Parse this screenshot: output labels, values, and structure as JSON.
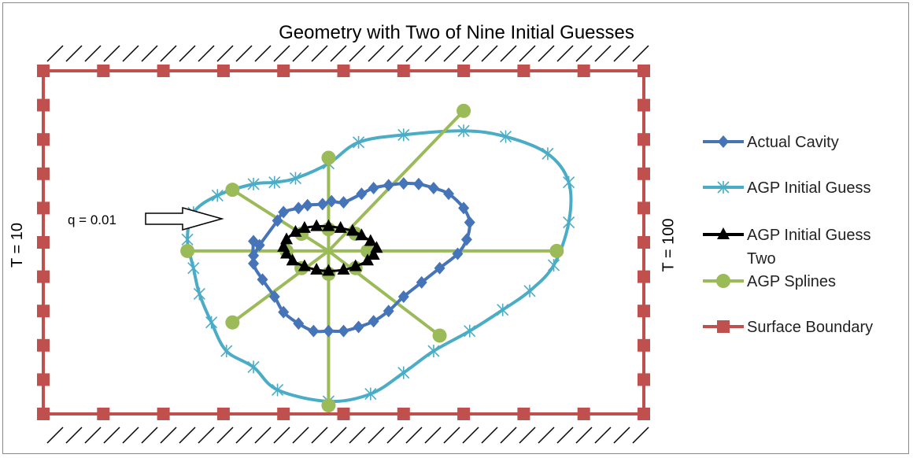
{
  "chart_data": {
    "type": "scatter",
    "title": "Geometry with Two of Nine Initial Guesses",
    "xlim": [
      0,
      10
    ],
    "ylim": [
      0,
      6
    ],
    "grid": false,
    "legend_position": "right",
    "left_boundary_label": "T = 10",
    "right_boundary_label": "T = 100",
    "flux_label": "q = 0.01",
    "series": [
      {
        "name": "Actual Cavity",
        "color": "#4674b8",
        "marker": "diamond",
        "points": [
          [
            3.5,
            3.02
          ],
          [
            3.5,
            2.77
          ],
          [
            3.6,
            2.95
          ],
          [
            3.9,
            3.38
          ],
          [
            4.0,
            3.53
          ],
          [
            4.25,
            3.6
          ],
          [
            4.4,
            3.65
          ],
          [
            4.65,
            3.67
          ],
          [
            4.8,
            3.72
          ],
          [
            5.0,
            3.7
          ],
          [
            5.3,
            3.85
          ],
          [
            5.5,
            3.95
          ],
          [
            5.75,
            4.0
          ],
          [
            6.0,
            4.03
          ],
          [
            6.25,
            4.02
          ],
          [
            6.5,
            3.95
          ],
          [
            6.75,
            3.85
          ],
          [
            7.0,
            3.6
          ],
          [
            7.1,
            3.35
          ],
          [
            7.05,
            3.05
          ],
          [
            6.9,
            2.8
          ],
          [
            6.6,
            2.55
          ],
          [
            6.3,
            2.3
          ],
          [
            6.0,
            2.05
          ],
          [
            5.75,
            1.8
          ],
          [
            5.5,
            1.62
          ],
          [
            5.25,
            1.52
          ],
          [
            5.0,
            1.45
          ],
          [
            4.75,
            1.45
          ],
          [
            4.5,
            1.45
          ],
          [
            4.25,
            1.58
          ],
          [
            4.0,
            1.78
          ],
          [
            3.85,
            2.05
          ],
          [
            3.65,
            2.35
          ],
          [
            3.5,
            2.63
          ]
        ]
      },
      {
        "name": "AGP Initial Guess",
        "color": "#4bacc6",
        "marker": "asterisk",
        "points": [
          [
            2.4,
            3.05
          ],
          [
            2.5,
            3.52
          ],
          [
            2.9,
            3.82
          ],
          [
            3.5,
            4.02
          ],
          [
            3.85,
            4.05
          ],
          [
            4.2,
            4.12
          ],
          [
            4.75,
            4.38
          ],
          [
            5.25,
            4.75
          ],
          [
            6.0,
            4.88
          ],
          [
            7.0,
            4.95
          ],
          [
            7.7,
            4.85
          ],
          [
            8.4,
            4.55
          ],
          [
            8.75,
            4.05
          ],
          [
            8.75,
            3.35
          ],
          [
            8.5,
            2.6
          ],
          [
            8.1,
            2.15
          ],
          [
            7.65,
            1.82
          ],
          [
            7.1,
            1.45
          ],
          [
            6.5,
            1.1
          ],
          [
            6.0,
            0.72
          ],
          [
            5.45,
            0.35
          ],
          [
            4.75,
            0.22
          ],
          [
            3.9,
            0.42
          ],
          [
            3.5,
            0.82
          ],
          [
            3.05,
            1.1
          ],
          [
            2.8,
            1.6
          ],
          [
            2.6,
            2.1
          ],
          [
            2.5,
            2.55
          ]
        ]
      },
      {
        "name": "AGP Initial Guess Two",
        "color": "#000000",
        "marker": "triangle",
        "points": [
          [
            4.05,
            3.05
          ],
          [
            4.2,
            3.18
          ],
          [
            4.35,
            3.25
          ],
          [
            4.55,
            3.28
          ],
          [
            4.75,
            3.28
          ],
          [
            4.95,
            3.25
          ],
          [
            5.15,
            3.2
          ],
          [
            5.3,
            3.12
          ],
          [
            5.45,
            3.02
          ],
          [
            5.55,
            2.9
          ],
          [
            5.5,
            2.78
          ],
          [
            5.4,
            2.68
          ],
          [
            5.2,
            2.58
          ],
          [
            5.0,
            2.52
          ],
          [
            4.75,
            2.5
          ],
          [
            4.55,
            2.52
          ],
          [
            4.35,
            2.58
          ],
          [
            4.15,
            2.68
          ],
          [
            4.05,
            2.8
          ],
          [
            4.0,
            2.92
          ]
        ]
      },
      {
        "name": "AGP Splines",
        "color": "#9bbb59",
        "marker": "circle",
        "spokes": true,
        "center": [
          4.75,
          2.85
        ],
        "points": [
          [
            4.75,
            4.48
          ],
          [
            7.0,
            5.3
          ],
          [
            8.55,
            2.85
          ],
          [
            6.6,
            1.37
          ],
          [
            4.75,
            0.15
          ],
          [
            3.15,
            1.6
          ],
          [
            2.4,
            2.85
          ],
          [
            3.15,
            3.92
          ],
          [
            4.75,
            3.23
          ],
          [
            5.2,
            3.15
          ],
          [
            5.4,
            2.85
          ],
          [
            5.2,
            2.55
          ],
          [
            4.75,
            2.45
          ],
          [
            4.3,
            2.55
          ],
          [
            4.05,
            2.85
          ],
          [
            4.3,
            3.15
          ]
        ]
      },
      {
        "name": "Surface Boundary",
        "color": "#c0504d",
        "marker": "square",
        "points": [
          [
            0,
            6
          ],
          [
            1,
            6
          ],
          [
            2,
            6
          ],
          [
            3,
            6
          ],
          [
            4,
            6
          ],
          [
            5,
            6
          ],
          [
            6,
            6
          ],
          [
            7,
            6
          ],
          [
            8,
            6
          ],
          [
            9,
            6
          ],
          [
            10,
            6
          ],
          [
            10,
            5.4
          ],
          [
            10,
            4.8
          ],
          [
            10,
            4.2
          ],
          [
            10,
            3.6
          ],
          [
            10,
            3
          ],
          [
            10,
            2.4
          ],
          [
            10,
            1.8
          ],
          [
            10,
            1.2
          ],
          [
            10,
            0.6
          ],
          [
            10,
            0
          ],
          [
            9,
            0
          ],
          [
            8,
            0
          ],
          [
            7,
            0
          ],
          [
            6,
            0
          ],
          [
            5,
            0
          ],
          [
            4,
            0
          ],
          [
            3,
            0
          ],
          [
            2,
            0
          ],
          [
            1,
            0
          ],
          [
            0,
            0
          ],
          [
            0,
            0.6
          ],
          [
            0,
            1.2
          ],
          [
            0,
            1.8
          ],
          [
            0,
            2.4
          ],
          [
            0,
            3
          ],
          [
            0,
            3.6
          ],
          [
            0,
            4.2
          ],
          [
            0,
            4.8
          ],
          [
            0,
            5.4
          ]
        ]
      }
    ]
  }
}
